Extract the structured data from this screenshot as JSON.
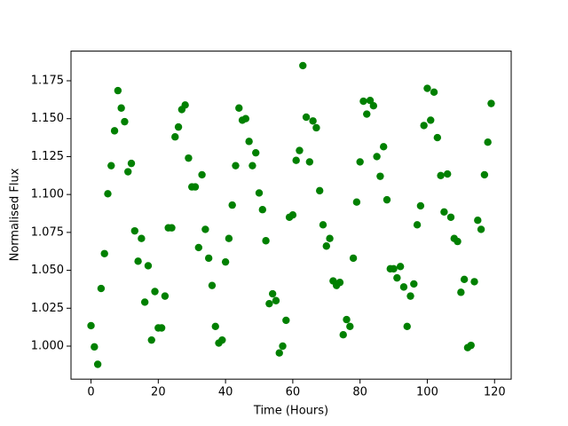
{
  "chart_data": {
    "type": "scatter",
    "xlabel": "Time (Hours)",
    "ylabel": "Normalised Flux",
    "color": "#008000",
    "grid": false,
    "x": [
      0,
      1,
      2,
      3,
      4,
      5,
      6,
      7,
      8,
      9,
      10,
      11,
      12,
      13,
      14,
      15,
      16,
      17,
      18,
      19,
      20,
      21,
      22,
      23,
      24,
      25,
      26,
      27,
      28,
      29,
      30,
      31,
      32,
      33,
      34,
      35,
      36,
      37,
      38,
      39,
      40,
      41,
      42,
      43,
      44,
      45,
      46,
      47,
      48,
      49,
      50,
      51,
      52,
      53,
      54,
      55,
      56,
      57,
      58,
      59,
      60,
      61,
      62,
      63,
      64,
      65,
      66,
      67,
      68,
      69,
      70,
      71,
      72,
      73,
      74,
      75,
      76,
      77,
      78,
      79,
      80,
      81,
      82,
      83,
      84,
      85,
      86,
      87,
      88,
      89,
      90,
      91,
      92,
      93,
      94,
      95,
      96,
      97,
      98,
      99,
      100,
      101,
      102,
      103,
      104,
      105,
      106,
      107,
      108,
      109,
      110,
      111,
      112,
      113,
      114,
      115,
      116,
      117,
      118,
      119
    ],
    "values": [
      1.0135,
      0.9995,
      0.988,
      1.038,
      1.061,
      1.1005,
      1.119,
      1.142,
      1.1685,
      1.157,
      1.148,
      1.115,
      1.1205,
      1.076,
      1.056,
      1.071,
      1.029,
      1.053,
      1.004,
      1.036,
      1.012,
      1.012,
      1.033,
      1.078,
      1.078,
      1.138,
      1.1445,
      1.156,
      1.159,
      1.124,
      1.105,
      1.105,
      1.065,
      1.113,
      1.077,
      1.058,
      1.04,
      1.013,
      1.002,
      1.004,
      1.0555,
      1.071,
      1.093,
      1.119,
      1.157,
      1.149,
      1.15,
      1.135,
      1.119,
      1.1275,
      1.101,
      1.09,
      1.0695,
      1.028,
      1.0345,
      1.03,
      0.9955,
      1.0,
      1.017,
      1.085,
      1.0865,
      1.1225,
      1.129,
      1.185,
      1.151,
      1.1215,
      1.1485,
      1.144,
      1.1025,
      1.08,
      1.066,
      1.071,
      1.043,
      1.04,
      1.042,
      1.0075,
      1.0175,
      1.013,
      1.058,
      1.095,
      1.1215,
      1.1615,
      1.153,
      1.162,
      1.1585,
      1.125,
      1.112,
      1.1315,
      1.0965,
      1.051,
      1.051,
      1.045,
      1.0525,
      1.039,
      1.013,
      1.033,
      1.041,
      1.08,
      1.0925,
      1.1455,
      1.17,
      1.149,
      1.1675,
      1.1375,
      1.1125,
      1.0885,
      1.1135,
      1.085,
      1.071,
      1.069,
      1.0355,
      1.044,
      0.999,
      1.0005,
      1.0425,
      1.083,
      1.077,
      1.113,
      1.1345,
      1.16
    ],
    "xlim": [
      -5.95,
      124.95
    ],
    "xticks": [
      0,
      20,
      40,
      60,
      80,
      100,
      120
    ],
    "ylim": [
      0.97823,
      1.19455
    ],
    "yticks": [
      {
        "value": 1.0,
        "label": "1.000"
      },
      1.025,
      {
        "value": 1.05,
        "label": "1.050"
      },
      1.075,
      {
        "value": 1.1,
        "label": "1.100"
      },
      1.125,
      {
        "value": 1.15,
        "label": "1.150"
      },
      1.175
    ]
  }
}
